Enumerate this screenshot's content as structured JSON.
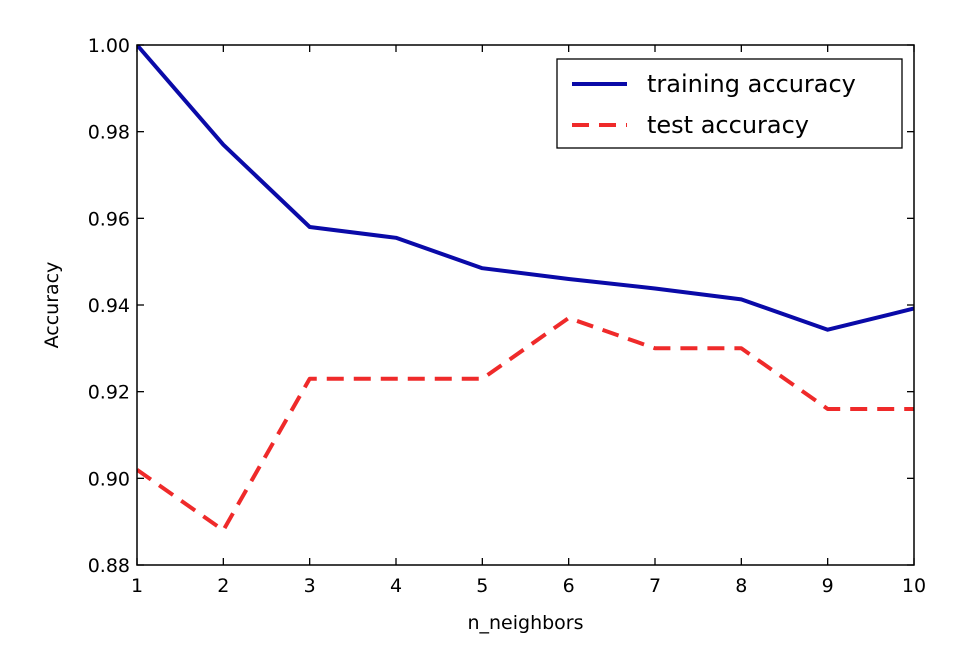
{
  "chart_data": {
    "type": "line",
    "title": "",
    "xlabel": "n_neighbors",
    "ylabel": "Accuracy",
    "xlim": [
      1,
      10
    ],
    "ylim": [
      0.88,
      1.0
    ],
    "x_ticks": [
      1,
      2,
      3,
      4,
      5,
      6,
      7,
      8,
      9,
      10
    ],
    "x_tick_labels": [
      "1",
      "2",
      "3",
      "4",
      "5",
      "6",
      "7",
      "8",
      "9",
      "10"
    ],
    "y_ticks": [
      0.88,
      0.9,
      0.92,
      0.94,
      0.96,
      0.98,
      1.0
    ],
    "y_tick_labels": [
      "0.88",
      "0.90",
      "0.92",
      "0.94",
      "0.96",
      "0.98",
      "1.00"
    ],
    "grid": false,
    "legend_position": "top-right",
    "x": [
      1,
      2,
      3,
      4,
      5,
      6,
      7,
      8,
      9,
      10
    ],
    "series": [
      {
        "name": "training accuracy",
        "color": "#0a0aa8",
        "style": "solid",
        "values": [
          1.0,
          0.977,
          0.958,
          0.9555,
          0.9485,
          0.946,
          0.9438,
          0.9413,
          0.9343,
          0.9392
        ]
      },
      {
        "name": "test accuracy",
        "color": "#ef2a2a",
        "style": "dashed",
        "values": [
          0.902,
          0.888,
          0.923,
          0.923,
          0.923,
          0.937,
          0.93,
          0.93,
          0.916,
          0.916
        ]
      }
    ]
  }
}
